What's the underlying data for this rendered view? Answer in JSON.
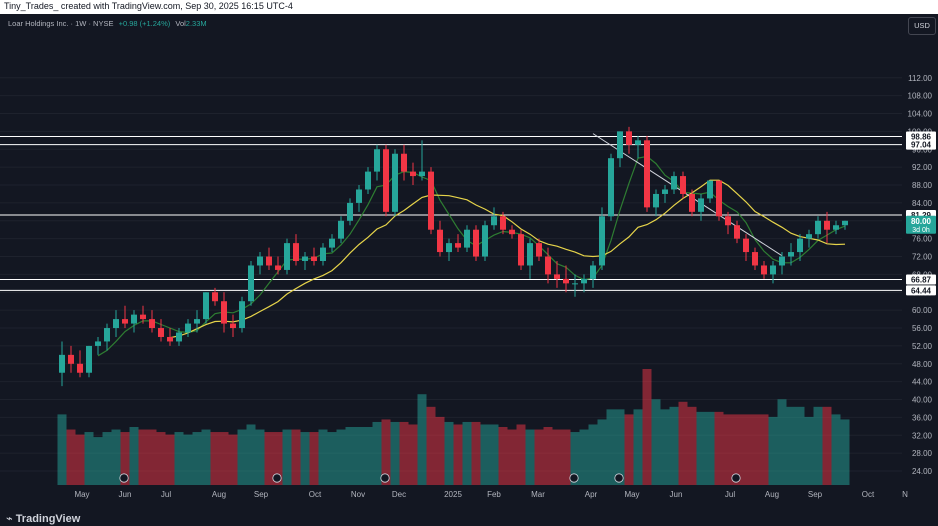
{
  "header": {
    "title": "Tiny_Trades_ created with TradingView.com, Sep 30, 2025 16:15 UTC-4"
  },
  "legend": {
    "symbol": "Loar Holdings Inc. · 1W · NYSE",
    "change": "+0.98 (+1.24%)",
    "vol_label": "Vol",
    "vol_value": "2.33M"
  },
  "currency_button": "USD",
  "brand": "TradingView",
  "colors": {
    "up": "#26a69a",
    "down": "#f23645",
    "ma_fast": "#2e7d32",
    "ma_slow": "#e6d44a",
    "level_line": "#ffffff",
    "background": "#131722"
  },
  "chart_data": {
    "type": "candlestick",
    "ylim": [
      22,
      116
    ],
    "y_ticks": [
      "112.00",
      "108.00",
      "104.00",
      "100.00",
      "96.00",
      "92.00",
      "88.00",
      "84.00",
      "80.00",
      "76.00",
      "72.00",
      "68.00",
      "64.00",
      "60.00",
      "56.00",
      "52.00",
      "48.00",
      "44.00",
      "40.00",
      "36.00",
      "32.00",
      "28.00",
      "24.00"
    ],
    "x_ticks": [
      "May",
      "Jun",
      "Jul",
      "Aug",
      "Sep",
      "Oct",
      "Nov",
      "Dec",
      "2025",
      "Feb",
      "Mar",
      "Apr",
      "May",
      "Jun",
      "Jul",
      "Aug",
      "Sep",
      "Oct",
      "N"
    ],
    "price_labels": [
      {
        "label": "98.86",
        "value": 98.86,
        "style": "level"
      },
      {
        "label": "97.04",
        "value": 97.04,
        "style": "level"
      },
      {
        "label": "81.29",
        "value": 81.29,
        "style": "level"
      },
      {
        "label": "80.00",
        "value": 80.0,
        "style": "current",
        "sub": "3d 0h"
      },
      {
        "label": "66.87",
        "value": 66.87,
        "style": "level"
      },
      {
        "label": "64.44",
        "value": 64.44,
        "style": "level"
      }
    ],
    "horizontal_levels": [
      98.86,
      97.04,
      81.29,
      66.87,
      64.44
    ],
    "trendline": [
      {
        "i": 59,
        "v": 99.5
      },
      {
        "i": 78,
        "v": 71.5
      }
    ],
    "event_markers": [
      4,
      21,
      33,
      54,
      59,
      72
    ],
    "candles": [
      {
        "o": 46,
        "h": 53,
        "l": 43,
        "c": 50,
        "v": 28
      },
      {
        "o": 50,
        "h": 52,
        "l": 46,
        "c": 48,
        "v": 22
      },
      {
        "o": 48,
        "h": 51,
        "l": 45,
        "c": 46,
        "v": 20
      },
      {
        "o": 46,
        "h": 52,
        "l": 45,
        "c": 52,
        "v": 21
      },
      {
        "o": 52,
        "h": 54,
        "l": 50,
        "c": 53,
        "v": 19
      },
      {
        "o": 53,
        "h": 57,
        "l": 51,
        "c": 56,
        "v": 21
      },
      {
        "o": 56,
        "h": 60,
        "l": 54,
        "c": 58,
        "v": 22
      },
      {
        "o": 58,
        "h": 61,
        "l": 56,
        "c": 57,
        "v": 21
      },
      {
        "o": 57,
        "h": 60,
        "l": 55,
        "c": 59,
        "v": 23
      },
      {
        "o": 59,
        "h": 61,
        "l": 57,
        "c": 58,
        "v": 22
      },
      {
        "o": 58,
        "h": 60,
        "l": 55,
        "c": 56,
        "v": 22
      },
      {
        "o": 56,
        "h": 58,
        "l": 53,
        "c": 54,
        "v": 21
      },
      {
        "o": 54,
        "h": 56,
        "l": 52,
        "c": 53,
        "v": 20
      },
      {
        "o": 53,
        "h": 56,
        "l": 52,
        "c": 55,
        "v": 21
      },
      {
        "o": 55,
        "h": 58,
        "l": 54,
        "c": 57,
        "v": 20
      },
      {
        "o": 57,
        "h": 60,
        "l": 55,
        "c": 58,
        "v": 21
      },
      {
        "o": 58,
        "h": 64,
        "l": 57,
        "c": 64,
        "v": 22
      },
      {
        "o": 64,
        "h": 65,
        "l": 61,
        "c": 62,
        "v": 21
      },
      {
        "o": 62,
        "h": 64,
        "l": 55,
        "c": 57,
        "v": 21
      },
      {
        "o": 57,
        "h": 59,
        "l": 54,
        "c": 56,
        "v": 20
      },
      {
        "o": 56,
        "h": 63,
        "l": 55,
        "c": 62,
        "v": 22
      },
      {
        "o": 62,
        "h": 71,
        "l": 61,
        "c": 70,
        "v": 24
      },
      {
        "o": 70,
        "h": 73,
        "l": 68,
        "c": 72,
        "v": 22
      },
      {
        "o": 72,
        "h": 74,
        "l": 69,
        "c": 70,
        "v": 21
      },
      {
        "o": 70,
        "h": 72,
        "l": 68,
        "c": 69,
        "v": 21
      },
      {
        "o": 69,
        "h": 76,
        "l": 68,
        "c": 75,
        "v": 22
      },
      {
        "o": 75,
        "h": 77,
        "l": 70,
        "c": 71,
        "v": 22
      },
      {
        "o": 71,
        "h": 73,
        "l": 69,
        "c": 72,
        "v": 21
      },
      {
        "o": 72,
        "h": 74,
        "l": 70,
        "c": 71,
        "v": 21
      },
      {
        "o": 71,
        "h": 75,
        "l": 70,
        "c": 74,
        "v": 22
      },
      {
        "o": 74,
        "h": 77,
        "l": 73,
        "c": 76,
        "v": 21
      },
      {
        "o": 76,
        "h": 81,
        "l": 75,
        "c": 80,
        "v": 22
      },
      {
        "o": 80,
        "h": 85,
        "l": 79,
        "c": 84,
        "v": 23
      },
      {
        "o": 84,
        "h": 88,
        "l": 82,
        "c": 87,
        "v": 23
      },
      {
        "o": 87,
        "h": 92,
        "l": 86,
        "c": 91,
        "v": 23
      },
      {
        "o": 91,
        "h": 97,
        "l": 89,
        "c": 96,
        "v": 25
      },
      {
        "o": 96,
        "h": 97,
        "l": 81,
        "c": 82,
        "v": 26
      },
      {
        "o": 82,
        "h": 96,
        "l": 81,
        "c": 95,
        "v": 25
      },
      {
        "o": 95,
        "h": 97,
        "l": 89,
        "c": 91,
        "v": 25
      },
      {
        "o": 91,
        "h": 93,
        "l": 88,
        "c": 90,
        "v": 24
      },
      {
        "o": 90,
        "h": 98,
        "l": 89,
        "c": 91,
        "v": 36
      },
      {
        "o": 91,
        "h": 92,
        "l": 77,
        "c": 78,
        "v": 31
      },
      {
        "o": 78,
        "h": 80,
        "l": 72,
        "c": 73,
        "v": 27
      },
      {
        "o": 73,
        "h": 76,
        "l": 71,
        "c": 75,
        "v": 25
      },
      {
        "o": 75,
        "h": 77,
        "l": 73,
        "c": 74,
        "v": 24
      },
      {
        "o": 74,
        "h": 79,
        "l": 73,
        "c": 78,
        "v": 25
      },
      {
        "o": 78,
        "h": 79,
        "l": 71,
        "c": 72,
        "v": 25
      },
      {
        "o": 72,
        "h": 80,
        "l": 71,
        "c": 79,
        "v": 24
      },
      {
        "o": 79,
        "h": 83,
        "l": 78,
        "c": 81,
        "v": 24
      },
      {
        "o": 81,
        "h": 82,
        "l": 77,
        "c": 78,
        "v": 23
      },
      {
        "o": 78,
        "h": 79,
        "l": 76,
        "c": 77,
        "v": 22
      },
      {
        "o": 77,
        "h": 78,
        "l": 69,
        "c": 70,
        "v": 24
      },
      {
        "o": 70,
        "h": 76,
        "l": 67,
        "c": 75,
        "v": 22
      },
      {
        "o": 75,
        "h": 76,
        "l": 71,
        "c": 72,
        "v": 22
      },
      {
        "o": 72,
        "h": 74,
        "l": 66,
        "c": 68,
        "v": 23
      },
      {
        "o": 68,
        "h": 71,
        "l": 65,
        "c": 67,
        "v": 22
      },
      {
        "o": 67,
        "h": 70,
        "l": 64,
        "c": 66,
        "v": 22
      },
      {
        "o": 66,
        "h": 68,
        "l": 63,
        "c": 66,
        "v": 21
      },
      {
        "o": 66,
        "h": 68,
        "l": 64,
        "c": 67,
        "v": 22
      },
      {
        "o": 67,
        "h": 71,
        "l": 65,
        "c": 70,
        "v": 24
      },
      {
        "o": 70,
        "h": 83,
        "l": 69,
        "c": 81,
        "v": 26
      },
      {
        "o": 81,
        "h": 95,
        "l": 80,
        "c": 94,
        "v": 30
      },
      {
        "o": 94,
        "h": 100,
        "l": 92,
        "c": 100,
        "v": 30
      },
      {
        "o": 100,
        "h": 101,
        "l": 95,
        "c": 97,
        "v": 28
      },
      {
        "o": 97,
        "h": 99,
        "l": 94,
        "c": 98,
        "v": 30
      },
      {
        "o": 98,
        "h": 99,
        "l": 82,
        "c": 83,
        "v": 46
      },
      {
        "o": 83,
        "h": 87,
        "l": 81,
        "c": 86,
        "v": 34
      },
      {
        "o": 86,
        "h": 88,
        "l": 84,
        "c": 87,
        "v": 30
      },
      {
        "o": 87,
        "h": 91,
        "l": 86,
        "c": 90,
        "v": 31
      },
      {
        "o": 90,
        "h": 91,
        "l": 85,
        "c": 86,
        "v": 33
      },
      {
        "o": 86,
        "h": 87,
        "l": 81,
        "c": 82,
        "v": 31
      },
      {
        "o": 82,
        "h": 86,
        "l": 80,
        "c": 85,
        "v": 29
      },
      {
        "o": 85,
        "h": 89,
        "l": 84,
        "c": 89,
        "v": 29
      },
      {
        "o": 89,
        "h": 89,
        "l": 80,
        "c": 81,
        "v": 29
      },
      {
        "o": 81,
        "h": 82,
        "l": 77,
        "c": 79,
        "v": 28
      },
      {
        "o": 79,
        "h": 80,
        "l": 75,
        "c": 76,
        "v": 28
      },
      {
        "o": 76,
        "h": 77,
        "l": 71,
        "c": 73,
        "v": 28
      },
      {
        "o": 73,
        "h": 74,
        "l": 69,
        "c": 70,
        "v": 28
      },
      {
        "o": 70,
        "h": 71,
        "l": 67,
        "c": 68,
        "v": 28
      },
      {
        "o": 68,
        "h": 71,
        "l": 66,
        "c": 70,
        "v": 27
      },
      {
        "o": 70,
        "h": 73,
        "l": 68,
        "c": 72,
        "v": 34
      },
      {
        "o": 72,
        "h": 75,
        "l": 70,
        "c": 73,
        "v": 31
      },
      {
        "o": 73,
        "h": 77,
        "l": 71,
        "c": 76,
        "v": 31
      },
      {
        "o": 76,
        "h": 78,
        "l": 74,
        "c": 77,
        "v": 27
      },
      {
        "o": 77,
        "h": 81,
        "l": 76,
        "c": 80,
        "v": 31
      },
      {
        "o": 80,
        "h": 82,
        "l": 75,
        "c": 78,
        "v": 31
      },
      {
        "o": 78,
        "h": 80,
        "l": 77,
        "c": 79,
        "v": 28
      },
      {
        "o": 79,
        "h": 80,
        "l": 78,
        "c": 80,
        "v": 26
      }
    ]
  }
}
